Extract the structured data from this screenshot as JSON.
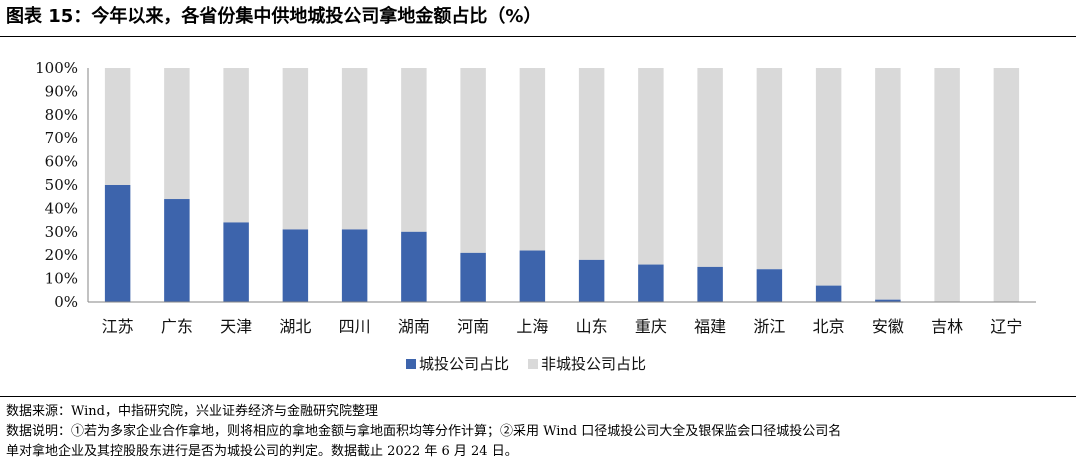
{
  "title": "图表 15：今年以来，各省份集中供地城投公司拿地金额占比（%）",
  "chart_data": {
    "type": "bar",
    "stacked": true,
    "categories": [
      "江苏",
      "广东",
      "天津",
      "湖北",
      "四川",
      "湖南",
      "河南",
      "上海",
      "山东",
      "重庆",
      "福建",
      "浙江",
      "北京",
      "安徽",
      "吉林",
      "辽宁"
    ],
    "series": [
      {
        "name": "城投公司占比",
        "color": "#3d64ac",
        "values": [
          50,
          44,
          34,
          31,
          31,
          30,
          21,
          22,
          18,
          16,
          15,
          14,
          7,
          1,
          0,
          0
        ]
      },
      {
        "name": "非城投公司占比",
        "color": "#d9d9d9",
        "values": [
          50,
          56,
          66,
          69,
          69,
          70,
          79,
          78,
          82,
          84,
          85,
          86,
          93,
          99,
          100,
          100
        ]
      }
    ],
    "ylim": [
      0,
      100
    ],
    "yticks": [
      "0%",
      "10%",
      "20%",
      "30%",
      "40%",
      "50%",
      "60%",
      "70%",
      "80%",
      "90%",
      "100%"
    ],
    "yticks_values": [
      0,
      10,
      20,
      30,
      40,
      50,
      60,
      70,
      80,
      90,
      100
    ],
    "legend_position": "bottom-center",
    "xlabel": "",
    "ylabel": ""
  },
  "notes": {
    "source": "数据来源：Wind，中指研究院，兴业证券经济与金融研究院整理",
    "explain_line1": "数据说明：①若为多家企业合作拿地，则将相应的拿地金额与拿地面积均等分作计算；②采用 Wind 口径城投公司大全及银保监会口径城投公司名",
    "explain_line2": "单对拿地企业及其控股股东进行是否为城投公司的判定。数据截止 2022 年 6 月 24 日。"
  }
}
